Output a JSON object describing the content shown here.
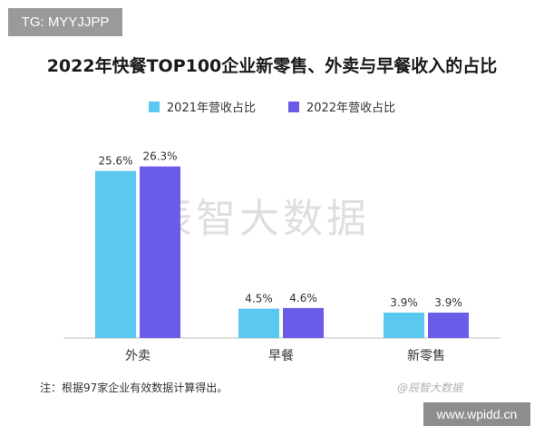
{
  "tag": "TG: MYYJJPP",
  "site": "www.wpidd.cn",
  "watermark": "辰智大数据",
  "source_watermark": "@辰智大数据",
  "note": "注：根据97家企业有效数据计算得出。",
  "colors": {
    "series1": "#5bc8f0",
    "series2": "#6a5ce8",
    "axis": "#bfbfbf"
  },
  "chart_data": {
    "type": "bar",
    "title": "2022年快餐TOP100企业新零售、外卖与早餐收入的占比",
    "legend_position": "top",
    "categories": [
      "外卖",
      "早餐",
      "新零售"
    ],
    "series": [
      {
        "name": "2021年营收占比",
        "values": [
          25.6,
          4.5,
          3.9
        ],
        "labels": [
          "25.6%",
          "4.5%",
          "3.9%"
        ]
      },
      {
        "name": "2022年营收占比",
        "values": [
          26.3,
          4.6,
          3.9
        ],
        "labels": [
          "26.3%",
          "4.6%",
          "3.9%"
        ]
      }
    ],
    "ylim": [
      0,
      30
    ],
    "grid": false
  }
}
